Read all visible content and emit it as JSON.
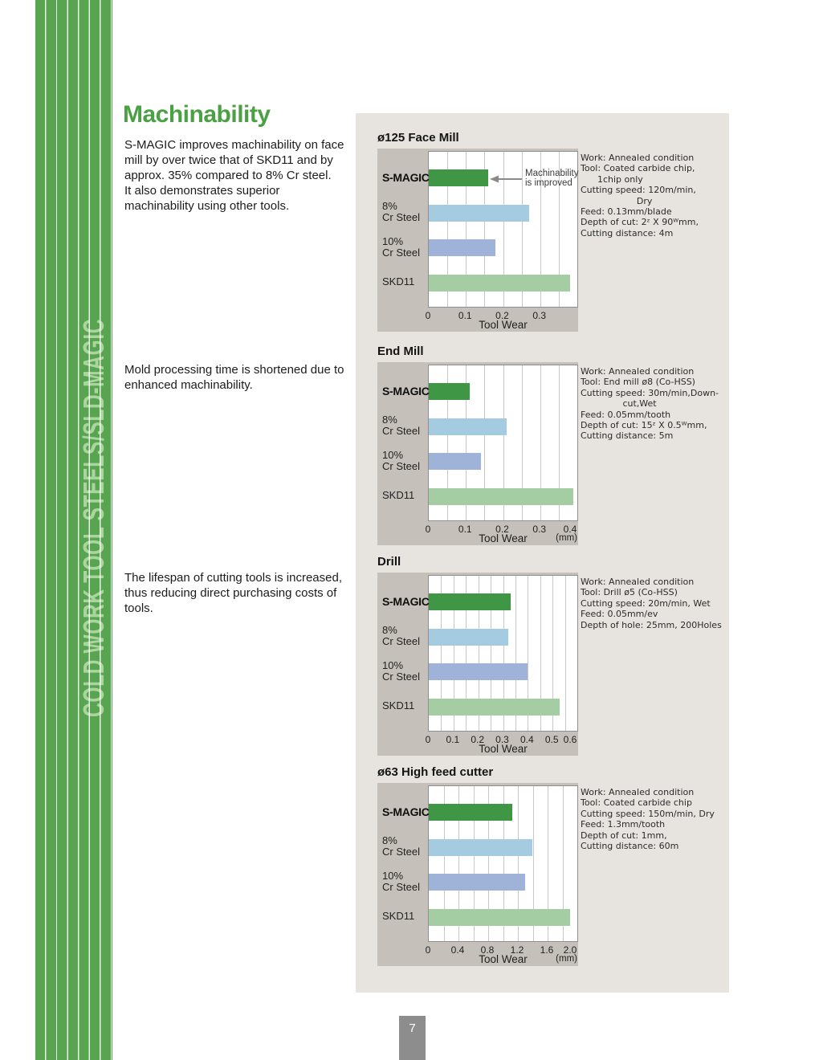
{
  "page": {
    "number": "7",
    "sidebar_text": "COLD WORK TOOL STEELS/SLD-MAGIC"
  },
  "heading": {
    "title": "Machinability"
  },
  "paragraphs": {
    "intro": "S-MAGIC  improves machinability on face\nmill by over twice that of SKD11 and by\napprox. 35% compared to 8% Cr steel.\nIt also demonstrates superior\nmachinability using other tools.",
    "mold": "Mold processing time is shortened due to\nenhanced machinability.",
    "lifespan": "The lifespan of cutting tools is increased,\nthus reducing direct purchasing costs of\ntools."
  },
  "colors": {
    "accent_green": "#4aa043",
    "sidebar_green": "#58a450",
    "panel_bg": "#e7e4e0",
    "chart_block_bg": "#c6c0ba",
    "annotation_gray": "#8a8a8a",
    "page_tab_gray": "#8d8d8d",
    "bar_colors": [
      "#3f9645",
      "#a5cbe1",
      "#9fb2d8",
      "#a5cda3"
    ]
  },
  "chart_data": [
    {
      "type": "bar",
      "title": "ø125 Face Mill",
      "categories": [
        "S-MAGIC",
        "8%\nCr Steel",
        "10%\nCr Steel",
        "SKD11"
      ],
      "values": [
        0.16,
        0.27,
        0.18,
        0.38
      ],
      "xlim": [
        0,
        0.4
      ],
      "ticks": [
        "0",
        "0.1",
        "0.2",
        "0.3"
      ],
      "grid_step": 0.05,
      "xlabel": "Tool Wear",
      "unit": "",
      "annotation": "Machinability\nis improved",
      "conditions": [
        "Work: Annealed condition",
        "Tool: Coated carbide chip,",
        "      1chip only",
        "Cutting speed: 120m/min,",
        "                    Dry",
        "Feed: 0.13mm/blade",
        "Depth of cut: 2ᶻ X 90ᵂmm,",
        "Cutting distance: 4m"
      ]
    },
    {
      "type": "bar",
      "title": "End Mill",
      "categories": [
        "S-MAGIC",
        "8%\nCr Steel",
        "10%\nCr Steel",
        "SKD11"
      ],
      "values": [
        0.11,
        0.21,
        0.14,
        0.39
      ],
      "xlim": [
        0,
        0.4
      ],
      "ticks": [
        "0",
        "0.1",
        "0.2",
        "0.3",
        "0.4"
      ],
      "grid_step": 0.05,
      "xlabel": "Tool Wear",
      "unit": "(mm)",
      "annotation": "",
      "conditions": [
        "Work: Annealed condition",
        "Tool: End mill ø8 (Co-HSS)",
        "Cutting speed: 30m/min,Down-",
        "               cut,Wet",
        "Feed: 0.05mm/tooth",
        "Depth of cut: 15ᶻ X 0.5ᵂmm,",
        "Cutting distance: 5m"
      ]
    },
    {
      "type": "bar",
      "title": "Drill",
      "categories": [
        "S-MAGIC",
        "8%\nCr Steel",
        "10%\nCr Steel",
        "SKD11"
      ],
      "values": [
        0.33,
        0.32,
        0.4,
        0.53
      ],
      "xlim": [
        0,
        0.6
      ],
      "ticks": [
        "0",
        "0.1",
        "0.2",
        "0.3",
        "0.4",
        "0.5",
        "0.6"
      ],
      "grid_step": 0.05,
      "xlabel": "Tool Wear",
      "unit": "",
      "annotation": "",
      "conditions": [
        "Work: Annealed condition",
        "Tool: Drill ø5 (Co-HSS)",
        "Cutting speed: 20m/min, Wet",
        "Feed: 0.05mm/ev",
        "Depth of hole: 25mm, 200Holes"
      ]
    },
    {
      "type": "bar",
      "title": "ø63 High feed cutter",
      "categories": [
        "S-MAGIC",
        "8%\nCr Steel",
        "10%\nCr Steel",
        "SKD11"
      ],
      "values": [
        1.12,
        1.39,
        1.3,
        1.9
      ],
      "xlim": [
        0,
        2.0
      ],
      "ticks": [
        "0",
        "0.4",
        "0.8",
        "1.2",
        "1.6",
        "2.0"
      ],
      "grid_step": 0.2,
      "xlabel": "Tool Wear",
      "unit": "(mm)",
      "annotation": "",
      "conditions": [
        "Work: Annealed condition",
        "Tool: Coated carbide chip",
        "Cutting speed: 150m/min, Dry",
        "Feed: 1.3mm/tooth",
        "Depth of cut: 1mm,",
        "Cutting distance: 60m"
      ]
    }
  ]
}
